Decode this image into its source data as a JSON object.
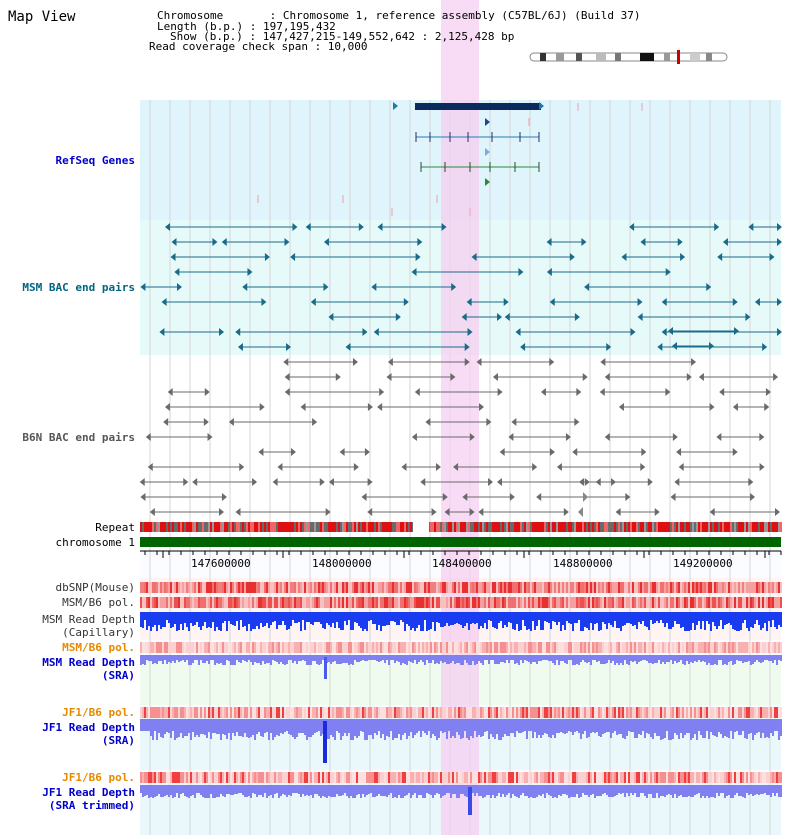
{
  "page_title": "Map View",
  "info": {
    "chromosome_line": "Chromosome       : Chromosome 1, reference assembly (C57BL/6J) (Build 37)",
    "length_line": "Length (b.p.) : 197,195,432",
    "show_line": "Show (b.p.) : 147,427,215-149,552,642 : 2,125,428 bp",
    "coverage_line": "Read coverage check span : 10,000"
  },
  "tracks": {
    "refseq": "RefSeq Genes",
    "msm_bac": "MSM BAC end pairs",
    "b6n_bac": "B6N BAC end pairs",
    "repeat": "Repeat",
    "chromosome": "chromosome 1",
    "dbsnp": "dbSNP(Mouse)",
    "msm_b6_pol_1": "MSM/B6 pol.",
    "msm_read_depth_cap_1": "MSM Read Depth",
    "msm_read_depth_cap_2": "(Capillary)",
    "msm_b6_pol_2": "MSM/B6 pol.",
    "msm_read_depth_sra_1": "MSM Read Depth",
    "msm_read_depth_sra_2": "(SRA)",
    "jf1_b6_pol_1": "JF1/B6 pol.",
    "jf1_read_depth_sra_1": "JF1 Read Depth",
    "jf1_read_depth_sra_2": "(SRA)",
    "jf1_b6_pol_2": "JF1/B6 pol.",
    "jf1_read_depth_trim_1": "JF1 Read Depth",
    "jf1_read_depth_trim_2": "(SRA trimmed)"
  },
  "axis": {
    "ticks": [
      "147600000",
      "148000000",
      "148400000",
      "148800000",
      "149200000"
    ]
  },
  "colors": {
    "refseq_bg": "#e0f4fb",
    "msm_bg": "#e6fafa",
    "track_bg_pink": "#fff4f4",
    "track_bg_green": "#f0fbf0",
    "highlight": "#f6cff0",
    "gene_dark": "#0b2a5e",
    "msm_feature": "#1a6a8a",
    "b6n_feature": "#6a6a6a",
    "depth_blue": "#1a3cf0",
    "depth_light": "#8080f0",
    "chromosome_green": "#006400",
    "label_blue": "#0000cc",
    "label_orange": "#e68a00",
    "label_teal": "#006680",
    "label_gray": "#555555"
  }
}
